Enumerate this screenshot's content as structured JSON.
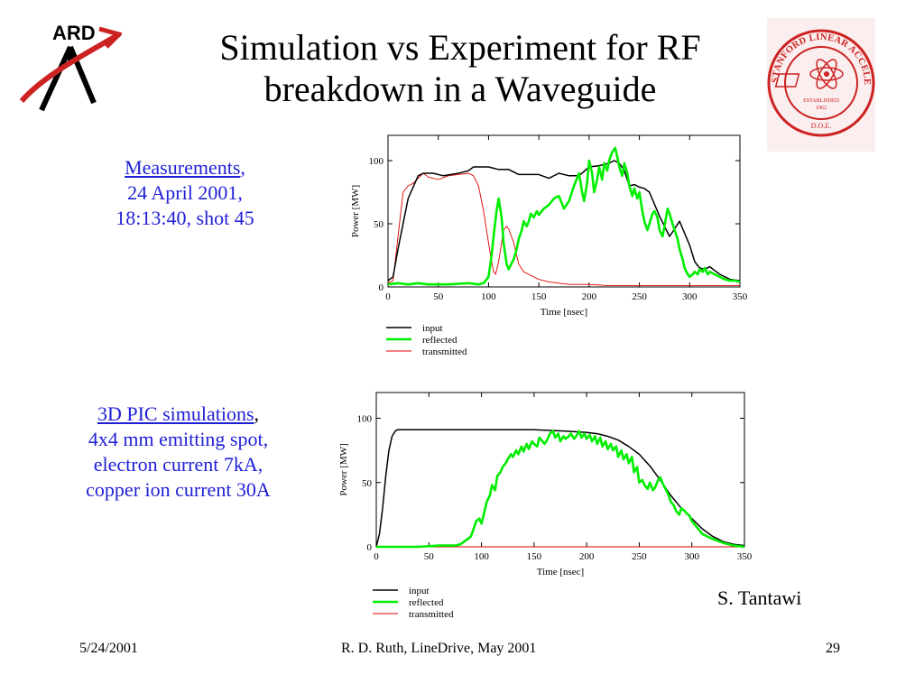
{
  "slide": {
    "title_line1": "Simulation vs Experiment for RF",
    "title_line2": "breakdown in a Waveguide",
    "logo_left_text": "ARD",
    "logo_right_text": "STANFORD LINEAR ACCELERATOR CENTER",
    "logo_right_sub1": "ESTABLISHED",
    "logo_right_sub2": "1962",
    "logo_right_bottom": "D.O.E.",
    "caption1": {
      "link": "Measurements",
      "after_link": ",",
      "line2": "24 April 2001,",
      "line3": "18:13:40, shot 45"
    },
    "caption2": {
      "link": "3D PIC simulations",
      "after_link": ",",
      "line2": "4x4 mm emitting spot,",
      "line3": "electron current 7kA,",
      "line4": "copper ion current 30A"
    },
    "author": "S. Tantawi",
    "footer": {
      "date": "5/24/2001",
      "center": "R. D. Ruth, LineDrive, May 2001",
      "page": "29"
    },
    "colors": {
      "caption": "#1f1fd6",
      "input": "#000000",
      "reflected": "#00ee00",
      "transmitted": "#e00000",
      "logo_red": "#cc2222"
    }
  },
  "chart_data": [
    {
      "type": "line",
      "xlabel": "Time [nsec]",
      "ylabel": "Power [MW]",
      "xlim": [
        0,
        350
      ],
      "ylim": [
        0,
        120
      ],
      "xticks": [
        "0",
        "50",
        "100",
        "150",
        "200",
        "250",
        "300",
        "350"
      ],
      "yticks": [
        "0",
        "50",
        "100"
      ],
      "legend_position": "bottom-left",
      "series": [
        {
          "name": "input",
          "color": "#000000",
          "x": [
            0,
            5,
            10,
            20,
            30,
            35,
            45,
            55,
            70,
            80,
            85,
            90,
            100,
            110,
            120,
            130,
            150,
            160,
            170,
            180,
            190,
            200,
            210,
            220,
            225,
            230,
            235,
            240,
            245,
            250,
            255,
            260,
            270,
            275,
            280,
            285,
            290,
            300,
            305,
            310,
            315,
            320,
            325,
            330,
            340,
            350
          ],
          "y": [
            5,
            8,
            30,
            70,
            88,
            90,
            90,
            88,
            90,
            92,
            95,
            95,
            95,
            93,
            93,
            89,
            89,
            86,
            90,
            88,
            88,
            95,
            96,
            98,
            100,
            98,
            92,
            80,
            81,
            79,
            78,
            75,
            56,
            48,
            40,
            46,
            52,
            33,
            20,
            15,
            14,
            16,
            13,
            10,
            6,
            5
          ]
        },
        {
          "name": "reflected",
          "color": "#00ee00",
          "x": [
            0,
            10,
            20,
            30,
            40,
            60,
            80,
            90,
            95,
            100,
            103,
            105,
            108,
            110,
            113,
            115,
            118,
            120,
            125,
            128,
            130,
            133,
            135,
            138,
            140,
            142,
            145,
            148,
            150,
            155,
            160,
            165,
            170,
            175,
            180,
            185,
            190,
            193,
            195,
            198,
            200,
            203,
            205,
            208,
            210,
            213,
            215,
            218,
            220,
            222,
            224,
            226,
            228,
            230,
            233,
            235,
            238,
            240,
            243,
            245,
            248,
            250,
            253,
            255,
            258,
            260,
            263,
            265,
            268,
            270,
            273,
            275,
            278,
            280,
            283,
            285,
            288,
            290,
            293,
            295,
            298,
            300,
            303,
            305,
            308,
            310,
            313,
            315,
            318,
            320,
            325,
            330,
            335,
            340,
            345,
            350
          ],
          "y": [
            2,
            3,
            2,
            3,
            2,
            2,
            3,
            2,
            3,
            8,
            25,
            40,
            60,
            70,
            55,
            35,
            18,
            14,
            22,
            30,
            38,
            45,
            52,
            48,
            52,
            58,
            55,
            60,
            57,
            62,
            65,
            70,
            72,
            62,
            68,
            80,
            90,
            75,
            68,
            82,
            100,
            90,
            75,
            85,
            95,
            85,
            98,
            92,
            100,
            105,
            108,
            110,
            103,
            95,
            88,
            98,
            90,
            80,
            72,
            78,
            70,
            75,
            60,
            52,
            45,
            50,
            58,
            60,
            55,
            45,
            40,
            48,
            62,
            58,
            50,
            45,
            38,
            30,
            22,
            15,
            10,
            8,
            10,
            12,
            10,
            14,
            12,
            15,
            10,
            12,
            10,
            8,
            6,
            5,
            5,
            4
          ]
        },
        {
          "name": "transmitted",
          "color": "#e00000",
          "x": [
            0,
            5,
            10,
            15,
            20,
            25,
            30,
            35,
            40,
            50,
            60,
            70,
            80,
            85,
            90,
            95,
            100,
            103,
            105,
            107,
            110,
            113,
            115,
            118,
            120,
            125,
            128,
            130,
            135,
            140,
            145,
            150,
            160,
            170,
            180,
            200,
            220,
            240,
            260,
            280,
            300,
            320,
            340,
            350
          ],
          "y": [
            3,
            5,
            40,
            75,
            80,
            82,
            86,
            90,
            87,
            85,
            88,
            89,
            90,
            88,
            80,
            60,
            35,
            20,
            12,
            10,
            20,
            35,
            45,
            48,
            46,
            35,
            25,
            18,
            12,
            10,
            8,
            6,
            4,
            3,
            2,
            2,
            1,
            1,
            1,
            1,
            1,
            1,
            1,
            1
          ]
        }
      ]
    },
    {
      "type": "line",
      "xlabel": "Time [nsec]",
      "ylabel": "Power [MW]",
      "xlim": [
        0,
        350
      ],
      "ylim": [
        0,
        120
      ],
      "xticks": [
        "0",
        "50",
        "100",
        "150",
        "200",
        "250",
        "300",
        "350"
      ],
      "yticks": [
        "0",
        "50",
        "100"
      ],
      "legend_position": "bottom-left",
      "series": [
        {
          "name": "input",
          "color": "#000000",
          "x": [
            0,
            3,
            6,
            9,
            12,
            15,
            18,
            20,
            25,
            50,
            100,
            150,
            180,
            200,
            210,
            220,
            230,
            240,
            250,
            260,
            270,
            280,
            290,
            300,
            310,
            320,
            330,
            340,
            350
          ],
          "y": [
            0,
            10,
            30,
            55,
            75,
            86,
            90,
            91,
            91,
            91,
            91,
            91,
            90,
            89,
            88,
            86,
            83,
            78,
            72,
            63,
            52,
            40,
            30,
            22,
            14,
            8,
            4,
            2,
            1
          ]
        },
        {
          "name": "reflected",
          "color": "#00ee00",
          "x": [
            0,
            10,
            20,
            40,
            60,
            75,
            80,
            85,
            90,
            93,
            95,
            98,
            100,
            103,
            105,
            108,
            110,
            113,
            115,
            118,
            120,
            123,
            125,
            128,
            130,
            133,
            135,
            138,
            140,
            143,
            145,
            148,
            150,
            153,
            155,
            158,
            160,
            163,
            165,
            168,
            170,
            173,
            175,
            178,
            180,
            183,
            185,
            188,
            190,
            193,
            195,
            198,
            200,
            203,
            205,
            208,
            210,
            213,
            215,
            218,
            220,
            223,
            225,
            228,
            230,
            233,
            235,
            238,
            240,
            243,
            245,
            248,
            250,
            253,
            255,
            258,
            260,
            263,
            265,
            268,
            270,
            273,
            275,
            278,
            280,
            283,
            285,
            288,
            290,
            293,
            295,
            298,
            300,
            305,
            310,
            320,
            330,
            340,
            350
          ],
          "y": [
            0,
            0,
            0,
            0,
            1,
            1,
            2,
            5,
            8,
            15,
            20,
            22,
            18,
            28,
            35,
            40,
            48,
            44,
            55,
            58,
            62,
            65,
            68,
            72,
            70,
            75,
            72,
            78,
            74,
            80,
            76,
            82,
            80,
            78,
            85,
            82,
            80,
            84,
            88,
            90,
            85,
            88,
            82,
            86,
            84,
            86,
            88,
            84,
            86,
            90,
            85,
            88,
            84,
            87,
            82,
            86,
            80,
            85,
            78,
            82,
            76,
            80,
            75,
            78,
            70,
            75,
            68,
            72,
            65,
            70,
            58,
            62,
            50,
            52,
            48,
            45,
            50,
            44,
            46,
            52,
            54,
            48,
            45,
            40,
            35,
            32,
            28,
            25,
            30,
            28,
            26,
            24,
            20,
            15,
            10,
            6,
            3,
            1,
            0
          ]
        },
        {
          "name": "transmitted",
          "color": "#e00000",
          "x": [
            0,
            350
          ],
          "y": [
            0,
            0
          ]
        }
      ]
    }
  ]
}
